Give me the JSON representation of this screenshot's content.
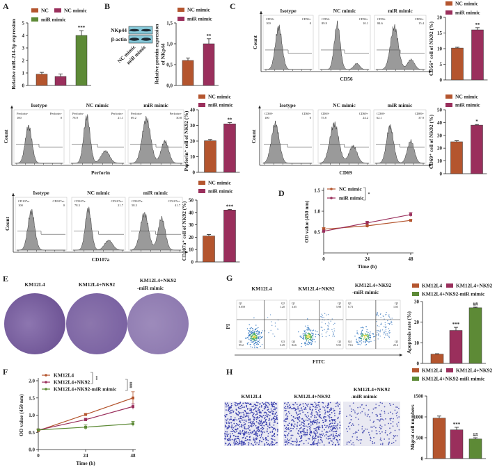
{
  "panel_letters": [
    "A",
    "B",
    "C",
    "D",
    "E",
    "F",
    "G",
    "H"
  ],
  "colors": {
    "nc": "#b4552e",
    "nc_mimic": "#9a2f5c",
    "mir_mimic": "#5d8a36",
    "histogram_fill": "#9a9a9a",
    "stain": "#7b62a3"
  },
  "blot": {
    "bands": [
      "NKp44",
      "β-actin"
    ],
    "lanes": [
      "NC mimic",
      "miR mimic"
    ]
  },
  "chart_data": [
    {
      "type": "bar",
      "categories": [
        "NC",
        "NC mimic",
        "miR mimic"
      ],
      "values": [
        0.9,
        0.72,
        4.0
      ],
      "errors": [
        0.15,
        0.2,
        0.38
      ],
      "annotations": [
        "",
        "",
        "***"
      ],
      "colors": [
        "#b4552e",
        "#9a2f5c",
        "#5d8a36"
      ],
      "ylabel": [
        "Relative miR-214-5p expression"
      ],
      "ylim": [
        0,
        5
      ],
      "yticks": [
        0,
        1,
        2,
        3,
        4,
        5
      ],
      "ytick_labels": [
        "0",
        "1",
        "2",
        "3",
        "4",
        "5"
      ]
    },
    {
      "type": "bar",
      "categories": [
        "NC mimic",
        "miR mimic"
      ],
      "values": [
        0.6,
        1.0
      ],
      "errors": [
        0.06,
        0.12
      ],
      "annotations": [
        "",
        "**"
      ],
      "colors": [
        "#b4552e",
        "#9a2f5c"
      ],
      "ylabel": [
        "Relative protein expression",
        "of NKp44"
      ],
      "ylim": [
        0,
        1.5
      ],
      "yticks": [
        0,
        0.5,
        1.0,
        1.5
      ],
      "ytick_labels": [
        "0,0",
        "0,5",
        "1,0",
        "1,5"
      ]
    },
    {
      "type": "bar",
      "categories": [
        "NC mimic",
        "miR mimic"
      ],
      "values": [
        10.2,
        16.0
      ],
      "errors": [
        0.25,
        0.7
      ],
      "annotations": [
        "",
        "**"
      ],
      "colors": [
        "#b4552e",
        "#9a2f5c"
      ],
      "ylabel": [
        "CD56⁺ cell of NK92 (%)"
      ],
      "ylim": [
        0,
        20
      ],
      "yticks": [
        0,
        5,
        10,
        15,
        20
      ],
      "ytick_labels": [
        "0",
        "5",
        "10",
        "15",
        "20"
      ]
    },
    {
      "type": "bar",
      "categories": [
        "NC mimic",
        "miR mimic"
      ],
      "values": [
        20.2,
        31.0
      ],
      "errors": [
        0.8,
        0.8
      ],
      "annotations": [
        "",
        "**"
      ],
      "colors": [
        "#b4552e",
        "#9a2f5c"
      ],
      "ylabel": [
        "Perforin⁺ cell of NK92 (%)"
      ],
      "ylim": [
        0,
        40
      ],
      "yticks": [
        0,
        10,
        20,
        30,
        40
      ],
      "ytick_labels": [
        "0",
        "10",
        "20",
        "30",
        "40"
      ]
    },
    {
      "type": "bar",
      "categories": [
        "NC mimic",
        "miR mimic"
      ],
      "values": [
        25.0,
        38.0
      ],
      "errors": [
        0.8,
        0.5
      ],
      "annotations": [
        "",
        "*"
      ],
      "colors": [
        "#b4552e",
        "#9a2f5c"
      ],
      "ylabel": [
        "CD69⁺ cell of NK92 (%)"
      ],
      "ylim": [
        0,
        50
      ],
      "yticks": [
        0,
        10,
        20,
        30,
        40,
        50
      ],
      "ytick_labels": [
        "0",
        "10",
        "20",
        "30",
        "40",
        "50"
      ]
    },
    {
      "type": "bar",
      "categories": [
        "NC mimic",
        "miR mimic"
      ],
      "values": [
        21.0,
        42.0
      ],
      "errors": [
        1.2,
        0.5
      ],
      "annotations": [
        "",
        "***"
      ],
      "colors": [
        "#b4552e",
        "#9a2f5c"
      ],
      "ylabel": [
        "CD107a⁺ cell of NK92 (%)"
      ],
      "ylim": [
        0,
        50
      ],
      "yticks": [
        0,
        10,
        20,
        30,
        40,
        50
      ],
      "ytick_labels": [
        "0",
        "10",
        "20",
        "30",
        "40",
        "50"
      ]
    },
    {
      "type": "line",
      "x": [
        0,
        24,
        48
      ],
      "xtick_labels": [
        "0",
        "24",
        "48"
      ],
      "xlabel": "Time (h)",
      "ylabel": [
        "OD value (450 nm)"
      ],
      "ylim": [
        0,
        1.5
      ],
      "yticks": [
        0.5,
        1.0,
        1.5
      ],
      "ytick_labels": [
        "0.5",
        "1.0",
        "1.5"
      ],
      "series": [
        {
          "name": "NC mimic",
          "values": [
            0.57,
            0.65,
            0.78
          ],
          "errors": [
            0.04,
            0.04,
            0.02
          ],
          "color": "#b4552e"
        },
        {
          "name": "miR mimic",
          "values": [
            0.52,
            0.72,
            0.92
          ],
          "errors": [
            0.03,
            0.04,
            0.05
          ],
          "color": "#9a2f5c"
        }
      ],
      "brackets": [
        "*"
      ]
    },
    {
      "type": "bar",
      "categories": [
        "KM12L4",
        "KM12L4+NK92",
        "KM12L4+NK92-miR mimic"
      ],
      "values": [
        4.5,
        16.0,
        27.0
      ],
      "errors": [
        0.2,
        1.5,
        0.3
      ],
      "annotations": [
        "",
        "***",
        "##"
      ],
      "colors": [
        "#b4552e",
        "#9a2f5c",
        "#5d8a36"
      ],
      "ylabel": [
        "Apoptosis rate (%)"
      ],
      "ylim": [
        0,
        30
      ],
      "yticks": [
        0,
        10,
        20,
        30
      ],
      "ytick_labels": [
        "0",
        "10",
        "20",
        "30"
      ]
    },
    {
      "type": "line",
      "x": [
        0,
        24,
        48
      ],
      "xtick_labels": [
        "0",
        "24",
        "48"
      ],
      "xlabel": "Time (h)",
      "ylabel": [
        "OD value (450 nm)"
      ],
      "ylim": [
        0,
        2.0
      ],
      "yticks": [
        0,
        0.5,
        1.0,
        1.5,
        2.0
      ],
      "ytick_labels": [
        "0.0",
        "0.5",
        "1.0",
        "1.5",
        "2.0"
      ],
      "series": [
        {
          "name": "KM12L4",
          "values": [
            0.55,
            1.02,
            1.5
          ],
          "errors": [
            0.03,
            0.02,
            0.18
          ],
          "color": "#b4552e"
        },
        {
          "name": "KM12L4+NK92",
          "values": [
            0.57,
            0.87,
            1.25
          ],
          "errors": [
            0.03,
            0.04,
            0.08
          ],
          "color": "#9a2f5c"
        },
        {
          "name": "KM12L4+NK92-miR mimic",
          "values": [
            0.57,
            0.65,
            0.75
          ],
          "errors": [
            0.03,
            0.07,
            0.07
          ],
          "color": "#5d8a36"
        }
      ],
      "brackets": [
        "**",
        "###"
      ]
    },
    {
      "type": "bar",
      "categories": [
        "KM12L4",
        "KM12L4+NK92",
        "KM12L4+NK92-miR mimic"
      ],
      "values": [
        970,
        690,
        470
      ],
      "errors": [
        50,
        60,
        30
      ],
      "annotations": [
        "",
        "***",
        "##"
      ],
      "colors": [
        "#b4552e",
        "#9a2f5c",
        "#5d8a36"
      ],
      "ylabel": [
        "Migrat cell numbers"
      ],
      "ylim": [
        0,
        1500
      ],
      "yticks": [
        0,
        500,
        1000,
        1500
      ],
      "ytick_labels": [
        "0",
        "500",
        "1000",
        "1500"
      ]
    }
  ],
  "flow_rows": [
    {
      "xlabel": "CD56",
      "ylabel": "Count",
      "panels": [
        {
          "title": "Isotype",
          "neg_label": "CD56-",
          "neg": "100",
          "pos_label": "CD56+",
          "pos": "0"
        },
        {
          "title": "NC mimic",
          "neg_label": "CD56-",
          "neg": "89.9",
          "pos_label": "CD56+",
          "pos": "10.1"
        },
        {
          "title": "miR mimic",
          "neg_label": "CD56-",
          "neg": "84.6",
          "pos_label": "CD56+",
          "pos": "15.4"
        }
      ]
    },
    {
      "xlabel": "Perforin",
      "ylabel": "Count",
      "panels": [
        {
          "title": "Isotype",
          "neg_label": "Perforin-",
          "neg": "100",
          "pos_label": "Perforin+",
          "pos": "0"
        },
        {
          "title": "NC mimic",
          "neg_label": "Perforin-",
          "neg": "78.9",
          "pos_label": "Perforin+",
          "pos": "21.1"
        },
        {
          "title": "miR mimic",
          "neg_label": "Perforin-",
          "neg": "69.2",
          "pos_label": "Perforin+",
          "pos": "30.8"
        }
      ]
    },
    {
      "xlabel": "CD69",
      "ylabel": "Count",
      "panels": [
        {
          "title": "Isotype",
          "neg_label": "CD69-",
          "neg": "100",
          "pos_label": "CD69+",
          "pos": "0"
        },
        {
          "title": "NC mimic",
          "neg_label": "CD69-",
          "neg": "75.8",
          "pos_label": "CD69+",
          "pos": "24.2"
        },
        {
          "title": "miR mimic",
          "neg_label": "CD69-",
          "neg": "62.1",
          "pos_label": "CD69+",
          "pos": "37.9"
        }
      ]
    },
    {
      "xlabel": "CD107a",
      "ylabel": "Count",
      "panels": [
        {
          "title": "Isotype",
          "neg_label": "CD107a-",
          "neg": "100",
          "pos_label": "CD107a+",
          "pos": "0"
        },
        {
          "title": "NC mimic",
          "neg_label": "CD107a-",
          "neg": "78.3",
          "pos_label": "CD107a+",
          "pos": "21.7"
        },
        {
          "title": "miR mimic",
          "neg_label": "CD107a-",
          "neg": "58.3",
          "pos_label": "CD107a+",
          "pos": "41.7"
        }
      ]
    }
  ],
  "apoptosis_flow": {
    "xlabel": "FITC",
    "ylabel": "PI",
    "panels": [
      {
        "title": [
          "KM12L4"
        ],
        "q1": "0.059",
        "q2": "1.20",
        "q3": "3.49",
        "q4": "95.2"
      },
      {
        "title": [
          "KM12L4+NK92"
        ],
        "q1": "3.65",
        "q2": "5.98",
        "q3": "5.55",
        "q4": "84.6"
      },
      {
        "title": [
          "KM12L4+NK92",
          "-miR mimic"
        ],
        "q1": "0.73",
        "q2": "1.05",
        "q3": "25.4",
        "q4": "73.6"
      }
    ],
    "quadrants": [
      "Q1",
      "Q2",
      "Q3",
      "Q4"
    ]
  },
  "colony": {
    "titles": [
      [
        "KM12L4"
      ],
      [
        "KM12L4+NK92"
      ],
      [
        "KM12L4+NK92",
        "-miR mimic"
      ]
    ]
  },
  "migration": {
    "titles": [
      [
        "KM12L4"
      ],
      [
        "KM12L4+NK92"
      ],
      [
        "KM12L4+NK92",
        "-miR mimic"
      ]
    ]
  }
}
